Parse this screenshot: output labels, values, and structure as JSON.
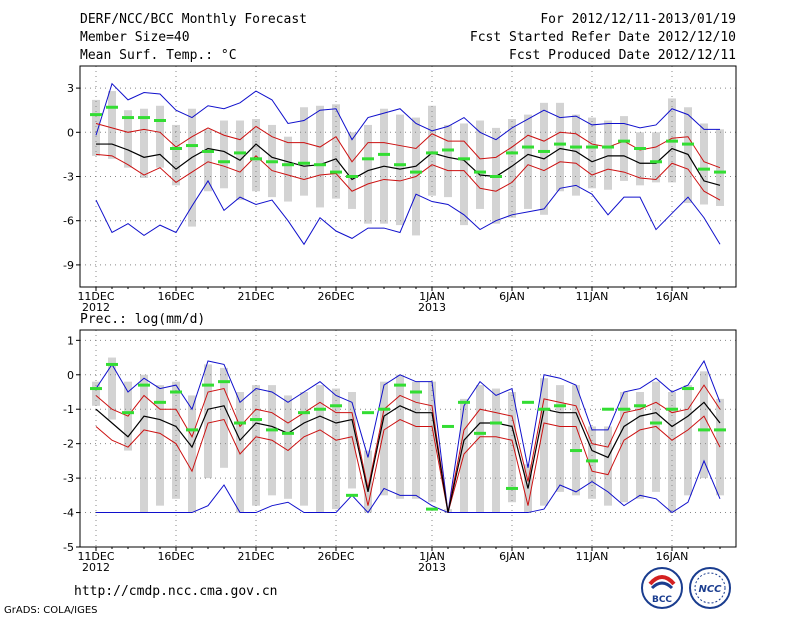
{
  "header": {
    "left": [
      "DERF/NCC/BCC Monthly Forecast",
      "Member Size=40",
      "Mean Surf. Temp.: °C"
    ],
    "right": [
      "For 2012/12/11-2013/01/19",
      "Fcst Started Refer Date 2012/12/10",
      "Fcst Produced Date 2012/12/11"
    ]
  },
  "panel2_label": "Prec.: log(mm/d)",
  "footer": {
    "url": "http://cmdp.ncc.cma.gov.cn",
    "credit": "GrADS: COLA/IGES"
  },
  "logos": {
    "bcc": "BCC",
    "ncc": "NCC"
  },
  "colors": {
    "envelope": "#1010cc",
    "quartile": "#cc1111",
    "mean": "#000000",
    "median": "#33dd33",
    "box": "#d3d3d3",
    "grid": "#888888"
  },
  "chart_data": [
    {
      "type": "box_plot_with_lines",
      "title": "Mean Surf. Temp.",
      "ylim": [
        -10.5,
        4.5
      ],
      "yticks": [
        3,
        0,
        -3,
        -6,
        -9
      ],
      "x_ticks": [
        {
          "day": 0,
          "label": "11DEC",
          "year": "2012"
        },
        {
          "day": 5,
          "label": "16DEC"
        },
        {
          "day": 10,
          "label": "21DEC"
        },
        {
          "day": 15,
          "label": "26DEC"
        },
        {
          "day": 21,
          "label": "1JAN",
          "year": "2013"
        },
        {
          "day": 26,
          "label": "6JAN"
        },
        {
          "day": 31,
          "label": "11JAN"
        },
        {
          "day": 36,
          "label": "16JAN"
        }
      ],
      "series": [
        {
          "name": "max",
          "values": [
            -0.2,
            3.3,
            2.2,
            2.7,
            2.6,
            1.5,
            1.0,
            1.8,
            1.6,
            2.0,
            2.8,
            2.2,
            0.6,
            0.8,
            1.5,
            1.6,
            -0.5,
            1.0,
            1.3,
            1.6,
            0.6,
            0.1,
            0.4,
            1.0,
            0.0,
            -0.5,
            0.3,
            0.9,
            1.5,
            1.0,
            1.1,
            0.5,
            0.6,
            0.6,
            0.3,
            0.5,
            1.6,
            1.2,
            0.2,
            0.2
          ]
        },
        {
          "name": "upper_quartile",
          "values": [
            0.6,
            0.3,
            0.0,
            0.2,
            0.0,
            -1.0,
            -0.3,
            0.3,
            -0.2,
            -0.5,
            0.4,
            -0.3,
            -0.7,
            -0.7,
            -1.0,
            -0.3,
            -2.0,
            -0.7,
            -0.7,
            -0.9,
            -1.1,
            -0.1,
            -0.6,
            -0.6,
            -1.8,
            -1.7,
            -1.0,
            -0.2,
            -0.6,
            0.0,
            -0.1,
            -0.8,
            -1.0,
            -0.6,
            -1.2,
            -1.0,
            -0.4,
            -0.3,
            -2.0,
            -2.4
          ]
        },
        {
          "name": "mean",
          "values": [
            -0.8,
            -0.8,
            -1.2,
            -1.7,
            -1.5,
            -2.5,
            -1.7,
            -1.1,
            -1.3,
            -1.9,
            -0.8,
            -1.7,
            -2.0,
            -2.3,
            -2.2,
            -1.8,
            -3.2,
            -2.6,
            -2.3,
            -2.5,
            -2.3,
            -1.4,
            -1.7,
            -1.9,
            -2.9,
            -3.0,
            -2.3,
            -1.5,
            -1.8,
            -1.1,
            -1.3,
            -2.0,
            -1.6,
            -1.6,
            -2.1,
            -2.1,
            -1.1,
            -1.5,
            -3.3,
            -3.6
          ]
        },
        {
          "name": "lower_quartile",
          "values": [
            -1.5,
            -1.6,
            -2.2,
            -2.9,
            -2.4,
            -3.4,
            -2.7,
            -2.0,
            -2.3,
            -2.7,
            -1.6,
            -2.6,
            -2.9,
            -3.2,
            -2.9,
            -2.8,
            -4.0,
            -3.5,
            -3.2,
            -3.3,
            -3.0,
            -2.2,
            -2.6,
            -2.6,
            -3.8,
            -4.0,
            -3.4,
            -2.2,
            -2.6,
            -2.0,
            -2.1,
            -2.9,
            -2.5,
            -2.7,
            -3.1,
            -3.2,
            -2.1,
            -2.5,
            -4.0,
            -4.6
          ]
        },
        {
          "name": "min",
          "values": [
            -4.6,
            -6.8,
            -6.2,
            -7.0,
            -6.3,
            -6.8,
            -5.0,
            -3.3,
            -5.3,
            -4.4,
            -4.9,
            -4.6,
            -6.0,
            -7.6,
            -5.8,
            -6.7,
            -7.2,
            -6.5,
            -6.5,
            -6.8,
            -4.2,
            -4.7,
            -4.9,
            -5.6,
            -6.6,
            -6.0,
            -5.6,
            -5.4,
            -5.2,
            -3.8,
            -3.6,
            -4.2,
            -5.6,
            -4.4,
            -4.4,
            -6.6,
            -5.5,
            -4.4,
            -5.8,
            -7.6
          ]
        },
        {
          "name": "box_top",
          "values": [
            2.2,
            2.8,
            1.5,
            1.6,
            1.8,
            0.5,
            1.6,
            0.2,
            0.8,
            0.8,
            0.9,
            0.5,
            -0.3,
            1.7,
            1.8,
            1.9,
            0.0,
            0.5,
            1.6,
            1.2,
            1.0,
            1.8,
            0.5,
            0.6,
            0.8,
            0.3,
            0.9,
            1.2,
            2.0,
            2.0,
            1.2,
            1.0,
            0.8,
            1.1,
            0.0,
            0.0,
            2.3,
            1.7,
            0.6,
            0.2
          ]
        },
        {
          "name": "box_bottom",
          "values": [
            -1.6,
            -1.8,
            -2.4,
            -3.1,
            -2.4,
            -3.6,
            -6.4,
            -4.0,
            -3.8,
            -4.6,
            -4.0,
            -4.4,
            -4.7,
            -4.3,
            -5.1,
            -4.5,
            -5.2,
            -6.2,
            -6.2,
            -6.3,
            -7.0,
            -4.3,
            -4.4,
            -6.3,
            -5.2,
            -6.2,
            -5.8,
            -5.2,
            -5.6,
            -4.0,
            -4.3,
            -3.8,
            -3.9,
            -3.3,
            -3.6,
            -3.4,
            -3.4,
            -4.8,
            -4.9,
            -5.0
          ]
        },
        {
          "name": "median",
          "values": [
            1.2,
            1.7,
            1.0,
            1.0,
            0.8,
            -1.1,
            -0.9,
            -1.3,
            -2.0,
            -1.4,
            -1.8,
            -2.0,
            -2.2,
            -2.1,
            -2.2,
            -2.7,
            -3.0,
            -1.8,
            -1.5,
            -2.2,
            -2.7,
            -1.4,
            -1.2,
            -1.8,
            -2.7,
            -3.0,
            -1.4,
            -1.0,
            -1.3,
            -0.8,
            -1.0,
            -1.0,
            -1.0,
            -0.6,
            -1.1,
            -2.0,
            -0.6,
            -0.8,
            -2.5,
            -2.7
          ]
        }
      ]
    },
    {
      "type": "box_plot_with_lines",
      "title": "Prec.: log(mm/d)",
      "ylim": [
        -5,
        1.3
      ],
      "yticks": [
        1,
        0,
        -1,
        -2,
        -3,
        -4,
        -5
      ],
      "x_ticks": [
        {
          "day": 0,
          "label": "11DEC",
          "year": "2012"
        },
        {
          "day": 5,
          "label": "16DEC"
        },
        {
          "day": 10,
          "label": "21DEC"
        },
        {
          "day": 15,
          "label": "26DEC"
        },
        {
          "day": 21,
          "label": "1JAN",
          "year": "2013"
        },
        {
          "day": 26,
          "label": "6JAN"
        },
        {
          "day": 31,
          "label": "11JAN"
        },
        {
          "day": 36,
          "label": "16JAN"
        }
      ],
      "series": [
        {
          "name": "max",
          "values": [
            -0.4,
            0.3,
            -0.5,
            -0.1,
            -0.4,
            -0.3,
            -1.0,
            0.4,
            0.3,
            -0.8,
            -0.4,
            -0.5,
            -0.8,
            -0.5,
            -0.2,
            -0.6,
            -0.8,
            -2.4,
            -0.3,
            0.0,
            -0.2,
            -0.2,
            -4.0,
            -0.9,
            -0.2,
            -0.6,
            -0.4,
            -2.7,
            0.0,
            -0.1,
            -0.3,
            -1.6,
            -1.6,
            -0.5,
            -0.4,
            -0.1,
            -0.5,
            -0.3,
            0.4,
            -0.8
          ]
        },
        {
          "name": "upper_quartile",
          "values": [
            -0.6,
            -1.0,
            -1.2,
            -0.6,
            -1.0,
            -1.0,
            -1.8,
            -0.5,
            -0.4,
            -1.5,
            -1.0,
            -1.1,
            -1.4,
            -1.1,
            -0.8,
            -1.1,
            -1.1,
            -3.3,
            -1.0,
            -0.6,
            -0.8,
            -0.9,
            -4.0,
            -1.6,
            -1.0,
            -1.1,
            -1.2,
            -3.1,
            -0.7,
            -0.8,
            -0.9,
            -2.0,
            -2.1,
            -1.1,
            -1.0,
            -0.8,
            -1.1,
            -1.0,
            -0.3,
            -1.0
          ]
        },
        {
          "name": "mean",
          "values": [
            -1.0,
            -1.4,
            -1.8,
            -1.2,
            -1.3,
            -1.5,
            -2.1,
            -1.0,
            -0.9,
            -1.9,
            -1.4,
            -1.5,
            -1.7,
            -1.4,
            -1.2,
            -1.4,
            -1.3,
            -3.4,
            -1.2,
            -0.9,
            -1.1,
            -1.1,
            -4.0,
            -1.9,
            -1.4,
            -1.4,
            -1.5,
            -3.3,
            -1.0,
            -1.1,
            -1.1,
            -2.2,
            -2.4,
            -1.5,
            -1.2,
            -1.1,
            -1.5,
            -1.2,
            -0.8,
            -1.4
          ]
        },
        {
          "name": "lower_quartile",
          "values": [
            -1.5,
            -1.9,
            -2.1,
            -1.6,
            -1.7,
            -2.0,
            -2.8,
            -1.4,
            -1.3,
            -2.3,
            -1.8,
            -1.9,
            -2.2,
            -1.8,
            -1.6,
            -1.9,
            -1.8,
            -3.8,
            -1.6,
            -1.3,
            -1.5,
            -1.5,
            -4.0,
            -2.3,
            -1.8,
            -1.8,
            -1.9,
            -3.8,
            -1.4,
            -1.5,
            -1.5,
            -2.8,
            -2.9,
            -1.9,
            -1.6,
            -1.5,
            -1.9,
            -1.6,
            -1.2,
            -2.1
          ]
        },
        {
          "name": "min",
          "values": [
            -4.0,
            -4.0,
            -4.0,
            -4.0,
            -4.0,
            -4.0,
            -4.0,
            -3.8,
            -3.2,
            -4.0,
            -4.0,
            -3.8,
            -3.7,
            -4.0,
            -4.0,
            -4.0,
            -3.5,
            -4.0,
            -3.3,
            -3.5,
            -3.5,
            -3.8,
            -4.0,
            -4.0,
            -4.0,
            -4.0,
            -4.0,
            -4.0,
            -3.9,
            -3.2,
            -3.4,
            -3.1,
            -3.4,
            -3.8,
            -3.5,
            -3.6,
            -4.0,
            -3.7,
            -2.5,
            -3.6
          ]
        },
        {
          "name": "box_top",
          "values": [
            -0.2,
            0.5,
            -0.2,
            0.0,
            -0.3,
            -0.2,
            -0.6,
            0.3,
            0.2,
            -0.5,
            -0.3,
            -0.3,
            -0.6,
            -0.5,
            -0.3,
            -0.4,
            -0.5,
            -2.2,
            -0.2,
            0.0,
            -0.2,
            -0.2,
            -3.9,
            -0.7,
            -0.3,
            -0.4,
            -0.5,
            -2.6,
            -0.1,
            -0.3,
            -0.3,
            -1.5,
            -1.5,
            -0.5,
            -0.5,
            -0.2,
            -0.5,
            -0.3,
            0.1,
            -0.7
          ]
        },
        {
          "name": "box_bottom",
          "values": [
            -0.9,
            -1.3,
            -2.2,
            -4.0,
            -3.8,
            -3.6,
            -4.0,
            -3.0,
            -2.7,
            -4.0,
            -3.8,
            -3.5,
            -3.6,
            -3.8,
            -4.0,
            -3.9,
            -3.3,
            -4.0,
            -3.5,
            -3.6,
            -3.6,
            -3.7,
            -4.0,
            -4.0,
            -4.0,
            -4.0,
            -3.7,
            -4.0,
            -3.8,
            -3.4,
            -3.5,
            -3.6,
            -3.8,
            -3.7,
            -3.6,
            -3.4,
            -4.0,
            -3.5,
            -3.0,
            -3.5
          ]
        },
        {
          "name": "median",
          "values": [
            -0.4,
            0.3,
            -1.1,
            -0.3,
            -0.8,
            -0.5,
            -1.6,
            -0.3,
            -0.2,
            -1.4,
            -1.3,
            -1.6,
            -1.7,
            -1.1,
            -1.0,
            -0.9,
            -3.5,
            -1.1,
            -1.0,
            -0.3,
            -0.5,
            -3.9,
            -1.5,
            -0.8,
            -1.7,
            -1.4,
            -3.3,
            -0.8,
            -1.0,
            -0.9,
            -2.2,
            -2.5,
            -1.0,
            -1.0,
            -0.9,
            -1.4,
            -1.0,
            -0.4,
            -1.6,
            -1.6
          ]
        }
      ]
    }
  ]
}
